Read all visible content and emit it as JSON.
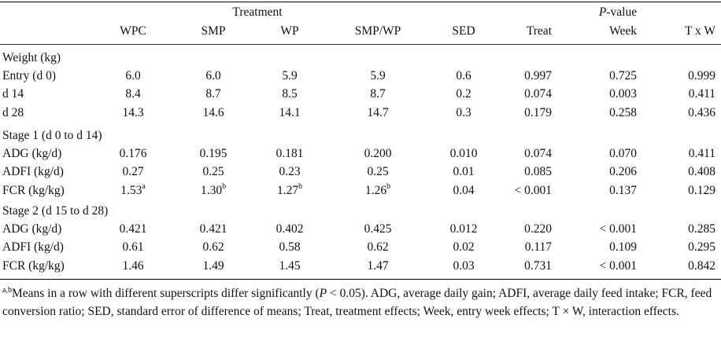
{
  "header": {
    "treatment_label": "Treatment",
    "pvalue_label_italic": "P",
    "pvalue_label_rest": "-value",
    "columns": [
      "WPC",
      "SMP",
      "WP",
      "SMP/WP",
      "SED",
      "Treat",
      "Week",
      "T x W"
    ]
  },
  "sections": [
    {
      "title": "Weight (kg)",
      "rows": [
        {
          "label": "Entry (d 0)",
          "cells": [
            {
              "v": "6.0",
              "s": ""
            },
            {
              "v": "6.0",
              "s": ""
            },
            {
              "v": "5.9",
              "s": ""
            },
            {
              "v": "5.9",
              "s": ""
            },
            {
              "v": "0.6",
              "s": ""
            },
            {
              "v": "0.997",
              "s": ""
            },
            {
              "v": "0.725",
              "s": ""
            },
            {
              "v": "0.999",
              "s": ""
            }
          ]
        },
        {
          "label": "d 14",
          "cells": [
            {
              "v": "8.4",
              "s": ""
            },
            {
              "v": "8.7",
              "s": ""
            },
            {
              "v": "8.5",
              "s": ""
            },
            {
              "v": "8.7",
              "s": ""
            },
            {
              "v": "0.2",
              "s": ""
            },
            {
              "v": "0.074",
              "s": ""
            },
            {
              "v": "0.003",
              "s": ""
            },
            {
              "v": "0.411",
              "s": ""
            }
          ]
        },
        {
          "label": "d 28",
          "cells": [
            {
              "v": "14.3",
              "s": ""
            },
            {
              "v": "14.6",
              "s": ""
            },
            {
              "v": "14.1",
              "s": ""
            },
            {
              "v": "14.7",
              "s": ""
            },
            {
              "v": "0.3",
              "s": ""
            },
            {
              "v": "0.179",
              "s": ""
            },
            {
              "v": "0.258",
              "s": ""
            },
            {
              "v": "0.436",
              "s": ""
            }
          ]
        }
      ]
    },
    {
      "title": "Stage 1 (d 0 to d 14)",
      "rows": [
        {
          "label": "ADG (kg/d)",
          "cells": [
            {
              "v": "0.176",
              "s": ""
            },
            {
              "v": "0.195",
              "s": ""
            },
            {
              "v": "0.181",
              "s": ""
            },
            {
              "v": "0.200",
              "s": ""
            },
            {
              "v": "0.010",
              "s": ""
            },
            {
              "v": "0.074",
              "s": ""
            },
            {
              "v": "0.070",
              "s": ""
            },
            {
              "v": "0.411",
              "s": ""
            }
          ]
        },
        {
          "label": "ADFI (kg/d)",
          "cells": [
            {
              "v": "0.27",
              "s": ""
            },
            {
              "v": "0.25",
              "s": ""
            },
            {
              "v": "0.23",
              "s": ""
            },
            {
              "v": "0.25",
              "s": ""
            },
            {
              "v": "0.01",
              "s": ""
            },
            {
              "v": "0.085",
              "s": ""
            },
            {
              "v": "0.206",
              "s": ""
            },
            {
              "v": "0.408",
              "s": ""
            }
          ]
        },
        {
          "label": "FCR (kg/kg)",
          "cells": [
            {
              "v": "1.53",
              "s": "a"
            },
            {
              "v": "1.30",
              "s": "b"
            },
            {
              "v": "1.27",
              "s": "b"
            },
            {
              "v": "1.26",
              "s": "b"
            },
            {
              "v": "0.04",
              "s": ""
            },
            {
              "v": "< 0.001",
              "s": ""
            },
            {
              "v": "0.137",
              "s": ""
            },
            {
              "v": "0.129",
              "s": ""
            }
          ]
        }
      ]
    },
    {
      "title": "Stage 2 (d 15 to d 28)",
      "rows": [
        {
          "label": "ADG (kg/d)",
          "cells": [
            {
              "v": "0.421",
              "s": ""
            },
            {
              "v": "0.421",
              "s": ""
            },
            {
              "v": "0.402",
              "s": ""
            },
            {
              "v": "0.425",
              "s": ""
            },
            {
              "v": "0.012",
              "s": ""
            },
            {
              "v": "0.220",
              "s": ""
            },
            {
              "v": "< 0.001",
              "s": ""
            },
            {
              "v": "0.285",
              "s": ""
            }
          ]
        },
        {
          "label": "ADFI (kg/d)",
          "cells": [
            {
              "v": "0.61",
              "s": ""
            },
            {
              "v": "0.62",
              "s": ""
            },
            {
              "v": "0.58",
              "s": ""
            },
            {
              "v": "0.62",
              "s": ""
            },
            {
              "v": "0.02",
              "s": ""
            },
            {
              "v": "0.117",
              "s": ""
            },
            {
              "v": "0.109",
              "s": ""
            },
            {
              "v": "0.295",
              "s": ""
            }
          ]
        },
        {
          "label": "FCR (kg/kg)",
          "cells": [
            {
              "v": "1.46",
              "s": ""
            },
            {
              "v": "1.49",
              "s": ""
            },
            {
              "v": "1.45",
              "s": ""
            },
            {
              "v": "1.47",
              "s": ""
            },
            {
              "v": "0.03",
              "s": ""
            },
            {
              "v": "0.731",
              "s": ""
            },
            {
              "v": "< 0.001",
              "s": ""
            },
            {
              "v": "0.842",
              "s": ""
            }
          ]
        }
      ]
    }
  ],
  "footnote": {
    "sup": "a,b",
    "part1": "Means in a row with different superscripts differ significantly (",
    "p_italic": "P",
    "part2": " < 0.05). ADG, average daily gain; ADFI, average daily feed intake; FCR, feed conversion ratio; SED, standard error of difference of means; Treat, treatment effects; Week, entry week effects; T × W, interaction effects."
  }
}
